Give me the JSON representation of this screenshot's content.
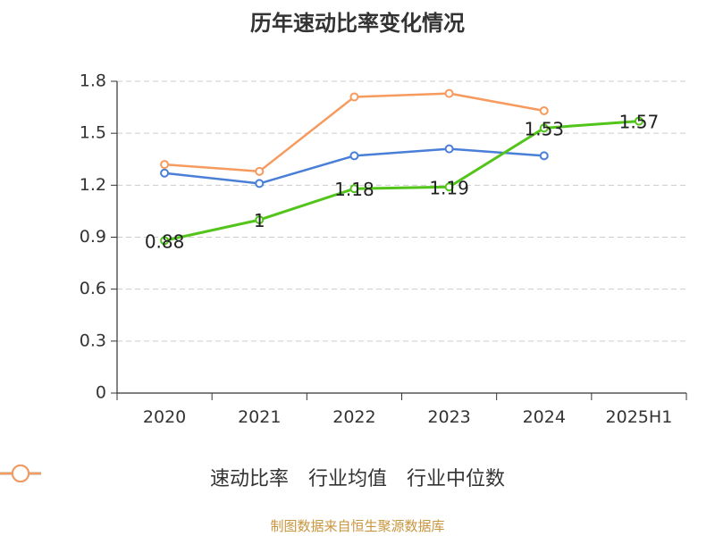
{
  "chart_data": {
    "type": "line",
    "title": "历年速动比率变化情况",
    "categories": [
      "2020",
      "2021",
      "2022",
      "2023",
      "2024",
      "2025H1"
    ],
    "ylim": [
      0,
      1.8
    ],
    "yticks": [
      "0",
      "0.3",
      "0.6",
      "0.9",
      "1.2",
      "1.5",
      "1.8"
    ],
    "grid": true,
    "legend_position": "bottom",
    "series": [
      {
        "name": "速动比率",
        "color": "#52c41a",
        "values": [
          0.88,
          1,
          1.18,
          1.19,
          1.53,
          1.57
        ],
        "labels": [
          "0.88",
          "1",
          "1.18",
          "1.19",
          "1.53",
          "1.57"
        ]
      },
      {
        "name": "行业均值",
        "color": "#4a7fd8",
        "values": [
          1.27,
          1.21,
          1.37,
          1.41,
          1.37,
          null
        ]
      },
      {
        "name": "行业中位数",
        "color": "#f79a5e",
        "values": [
          1.32,
          1.28,
          1.71,
          1.73,
          1.63,
          null
        ]
      }
    ]
  },
  "source": "制图数据来自恒生聚源数据库"
}
